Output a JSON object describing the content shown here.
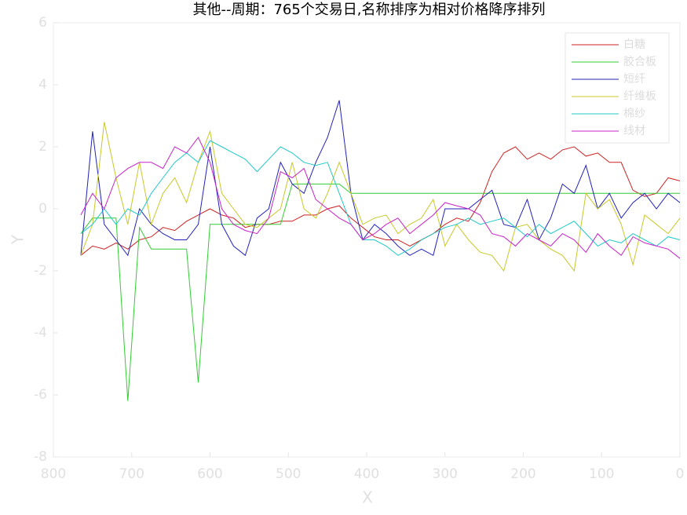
{
  "chart_data": {
    "type": "line",
    "title": "其他--周期：765个交易日,名称排序为相对价格降序排列",
    "xlabel": "X",
    "ylabel": "Y",
    "x": [
      765,
      750,
      735,
      720,
      705,
      690,
      675,
      660,
      645,
      630,
      615,
      600,
      585,
      570,
      555,
      540,
      525,
      510,
      495,
      480,
      465,
      450,
      435,
      420,
      405,
      390,
      375,
      360,
      345,
      330,
      315,
      300,
      285,
      270,
      255,
      240,
      225,
      210,
      195,
      180,
      165,
      150,
      135,
      120,
      105,
      90,
      75,
      60,
      45,
      30,
      15,
      0
    ],
    "xlim": [
      800,
      0
    ],
    "ylim": [
      -8,
      6
    ],
    "xticks": [
      800,
      700,
      600,
      500,
      400,
      300,
      200,
      100,
      0
    ],
    "yticks": [
      -8,
      -6,
      -4,
      -2,
      0,
      2,
      4,
      6
    ],
    "grid": false,
    "legend": "upper right",
    "series": [
      {
        "name": "白糖",
        "color": "#cc2222",
        "values": [
          -1.5,
          -1.2,
          -1.3,
          -1.1,
          -1.3,
          -1.0,
          -0.9,
          -0.6,
          -0.7,
          -0.4,
          -0.2,
          0.0,
          -0.2,
          -0.3,
          -0.6,
          -0.5,
          -0.5,
          -0.4,
          -0.4,
          -0.2,
          -0.2,
          0.0,
          0.1,
          -0.3,
          -0.6,
          -0.9,
          -1.0,
          -1.0,
          -1.2,
          -1.0,
          -0.8,
          -0.5,
          -0.3,
          -0.4,
          0.2,
          1.2,
          1.8,
          2.0,
          1.6,
          1.8,
          1.6,
          1.9,
          2.0,
          1.7,
          1.8,
          1.5,
          1.5,
          0.6,
          0.4,
          0.5,
          1.0,
          0.9
        ]
      },
      {
        "name": "胶合板",
        "color": "#33cc33",
        "values": [
          -0.8,
          -0.3,
          -0.3,
          -0.3,
          -6.2,
          -0.6,
          -1.3,
          -1.3,
          -1.3,
          -1.3,
          -5.6,
          -0.5,
          -0.5,
          -0.5,
          -0.5,
          -0.5,
          -0.5,
          -0.5,
          0.8,
          0.8,
          0.8,
          0.8,
          0.8,
          0.5,
          0.5,
          0.5,
          0.5,
          0.5,
          0.5,
          0.5,
          0.5,
          0.5,
          0.5,
          0.5,
          0.5,
          0.5,
          0.5,
          0.5,
          0.5,
          0.5,
          0.5,
          0.5,
          0.5,
          0.5,
          0.5,
          0.5,
          0.5,
          0.5,
          0.5,
          0.5,
          0.5,
          0.5
        ]
      },
      {
        "name": "短纤",
        "color": "#2222bb",
        "values": [
          -1.5,
          2.5,
          -0.5,
          -1.0,
          -1.5,
          0.0,
          -0.5,
          -0.8,
          -1.0,
          -1.0,
          -0.5,
          2.0,
          -0.5,
          -1.2,
          -1.5,
          -0.3,
          0.0,
          1.5,
          0.8,
          0.5,
          1.5,
          2.3,
          3.5,
          0.5,
          -1.0,
          -0.5,
          -0.8,
          -1.2,
          -1.5,
          -1.3,
          -1.5,
          0.0,
          0.0,
          0.0,
          0.3,
          0.6,
          -0.5,
          -0.6,
          0.3,
          -1.0,
          -0.3,
          0.8,
          0.5,
          1.4,
          0.0,
          0.5,
          -0.3,
          0.2,
          0.5,
          0.0,
          0.5,
          0.2
        ]
      },
      {
        "name": "纤维板",
        "color": "#c8c828",
        "values": [
          -1.5,
          -0.5,
          2.8,
          1.0,
          -0.5,
          1.5,
          -0.5,
          0.5,
          1.0,
          0.2,
          1.5,
          2.5,
          0.5,
          0.0,
          -0.5,
          -0.6,
          -0.3,
          0.0,
          1.5,
          0.0,
          -0.3,
          0.5,
          1.5,
          0.5,
          -0.5,
          -0.3,
          -0.2,
          -0.8,
          -0.5,
          -0.3,
          0.3,
          -1.2,
          -0.5,
          -1.0,
          -1.4,
          -1.5,
          -2.0,
          -0.6,
          -0.5,
          -1.0,
          -1.3,
          -1.5,
          -2.0,
          0.5,
          0.0,
          0.3,
          -0.5,
          -1.8,
          -0.2,
          -0.5,
          -0.8,
          -0.3
        ]
      },
      {
        "name": "棉纱",
        "color": "#22c8c8",
        "values": [
          -0.8,
          -0.5,
          0.0,
          -0.5,
          0.0,
          -0.2,
          0.5,
          1.0,
          1.5,
          1.8,
          1.5,
          2.2,
          2.0,
          1.8,
          1.6,
          1.2,
          1.6,
          2.0,
          1.8,
          1.5,
          1.4,
          1.5,
          0.5,
          -0.5,
          -1.0,
          -1.0,
          -1.2,
          -1.5,
          -1.3,
          -1.0,
          -0.8,
          -0.6,
          -0.5,
          -0.3,
          -0.5,
          -0.4,
          -0.3,
          -0.6,
          -0.9,
          -0.5,
          -0.8,
          -0.6,
          -0.4,
          -0.8,
          -1.2,
          -1.0,
          -1.1,
          -0.8,
          -1.0,
          -1.2,
          -0.9,
          -1.0
        ]
      },
      {
        "name": "线材",
        "color": "#c822c8",
        "values": [
          -0.2,
          0.5,
          0.0,
          1.0,
          1.3,
          1.5,
          1.5,
          1.3,
          2.0,
          1.8,
          2.3,
          1.5,
          0.0,
          -0.5,
          -0.7,
          -0.8,
          -0.3,
          1.2,
          1.0,
          1.3,
          0.3,
          0.0,
          -0.3,
          -0.5,
          -1.0,
          -0.8,
          -0.5,
          -0.3,
          -0.8,
          -0.5,
          -0.2,
          0.2,
          0.1,
          0.0,
          -0.2,
          -0.8,
          -0.9,
          -1.2,
          -0.8,
          -1.0,
          -1.2,
          -0.8,
          -1.0,
          -1.4,
          -0.8,
          -1.2,
          -1.5,
          -0.9,
          -1.1,
          -1.2,
          -1.3,
          -1.6
        ]
      }
    ]
  }
}
